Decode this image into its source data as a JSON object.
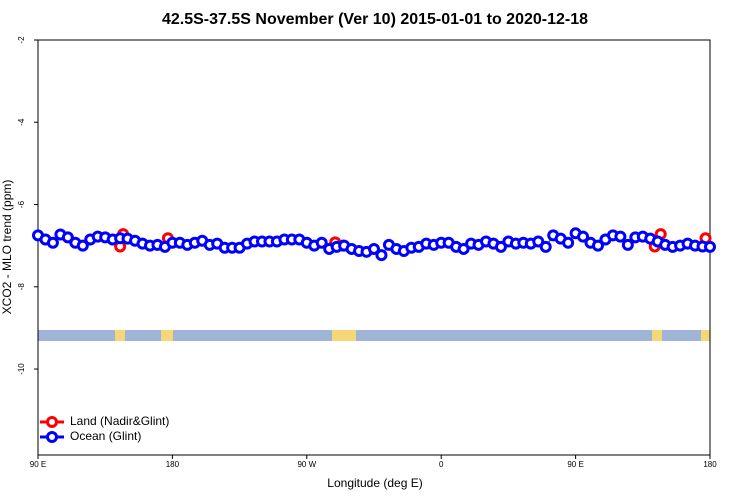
{
  "chart_data": {
    "type": "scatter",
    "title": "42.5S-37.5S November (Ver 10)   2015-01-01 to 2020-12-18",
    "x_label": "Longitude (deg E)",
    "y_label": "XCO2 - MLO trend (ppm)",
    "xlim": [
      90,
      540
    ],
    "ylim": [
      -12.09,
      -2
    ],
    "xticks": [
      {
        "value": 90,
        "label": "90 E"
      },
      180,
      {
        "value": 270,
        "label": "90 W"
      },
      {
        "value": 360,
        "label": "0"
      },
      {
        "value": 450,
        "label": "90 E"
      },
      {
        "value": 540,
        "label": "180"
      }
    ],
    "yticks": [
      -2,
      -4,
      -6,
      -8,
      -10
    ],
    "legend": "bottom-left",
    "series": [
      {
        "name": "Land (Nadir&Glint)",
        "color": "#ff0000",
        "x": [
          145,
          147,
          177,
          289,
          294,
          503,
          507,
          537
        ],
        "values": [
          -7.02,
          -6.72,
          -6.82,
          -6.92,
          -7.0,
          -7.02,
          -6.72,
          -6.82
        ]
      },
      {
        "name": "Ocean (Glint)",
        "color": "#0000ff",
        "x": [
          90,
          95,
          100,
          105,
          110,
          115,
          120,
          125,
          130,
          135,
          140,
          145,
          150,
          155,
          160,
          165,
          170,
          175,
          180,
          185,
          190,
          195,
          200,
          205,
          210,
          215,
          220,
          225,
          230,
          235,
          240,
          245,
          250,
          255,
          260,
          265,
          270,
          275,
          280,
          285,
          290,
          295,
          300,
          305,
          310,
          315,
          320,
          325,
          330,
          335,
          340,
          345,
          350,
          355,
          360,
          365,
          370,
          375,
          380,
          385,
          390,
          395,
          400,
          405,
          410,
          415,
          420,
          425,
          430,
          435,
          440,
          445,
          450,
          455,
          460,
          465,
          470,
          475,
          480,
          485,
          490,
          495,
          500,
          505,
          510,
          515,
          520,
          525,
          530,
          535,
          540
        ],
        "values": [
          -6.75,
          -6.85,
          -6.93,
          -6.73,
          -6.8,
          -6.93,
          -7.0,
          -6.85,
          -6.78,
          -6.8,
          -6.85,
          -6.82,
          -6.83,
          -6.88,
          -6.95,
          -7.0,
          -6.98,
          -7.03,
          -6.93,
          -6.93,
          -6.98,
          -6.93,
          -6.88,
          -6.98,
          -6.95,
          -7.05,
          -7.05,
          -7.05,
          -6.95,
          -6.9,
          -6.9,
          -6.9,
          -6.9,
          -6.85,
          -6.85,
          -6.85,
          -6.93,
          -7.0,
          -6.93,
          -7.08,
          -7.03,
          -7.0,
          -7.08,
          -7.13,
          -7.15,
          -7.08,
          -7.23,
          -6.98,
          -7.08,
          -7.13,
          -7.05,
          -7.03,
          -6.95,
          -6.98,
          -6.93,
          -6.93,
          -7.03,
          -7.08,
          -6.95,
          -6.98,
          -6.9,
          -6.95,
          -7.03,
          -6.9,
          -6.95,
          -6.93,
          -6.95,
          -6.9,
          -7.03,
          -6.75,
          -6.83,
          -6.93,
          -6.7,
          -6.78,
          -6.93,
          -7.0,
          -6.85,
          -6.75,
          -6.78,
          -6.98,
          -6.8,
          -6.78,
          -6.83,
          -6.9,
          -6.98,
          -7.03,
          -7.0,
          -6.95,
          -7.0,
          -7.02,
          -7.03
        ]
      }
    ]
  }
}
